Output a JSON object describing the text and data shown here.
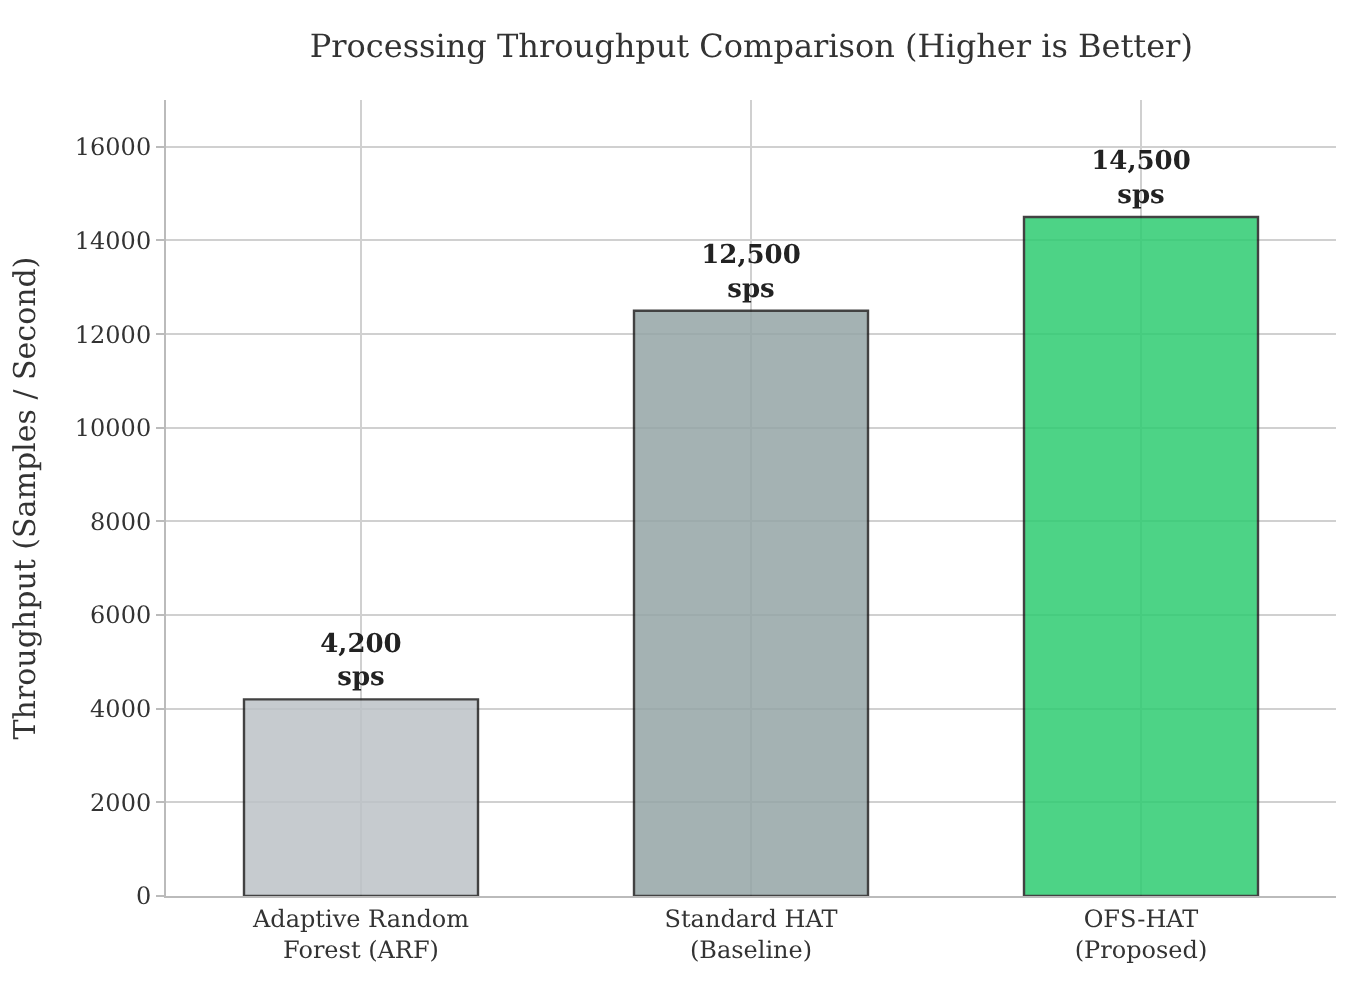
{
  "chart_data": {
    "type": "bar",
    "title": "Processing Throughput Comparison (Higher is Better)",
    "ylabel": "Throughput (Samples / Second)",
    "categories": [
      "Adaptive Random\nForest (ARF)",
      "Standard HAT\n(Baseline)",
      "OFS-HAT\n(Proposed)"
    ],
    "values": [
      4200,
      12500,
      14500
    ],
    "colors": [
      "#bdc3c7",
      "#95a5a6",
      "#2ecc71"
    ],
    "value_labels": [
      "4,200\nsps",
      "12,500\nsps",
      "14,500\nsps"
    ],
    "ylim": [
      0,
      17000
    ],
    "yticks": [
      0,
      2000,
      4000,
      6000,
      8000,
      10000,
      12000,
      14000,
      16000
    ],
    "grid": true
  }
}
